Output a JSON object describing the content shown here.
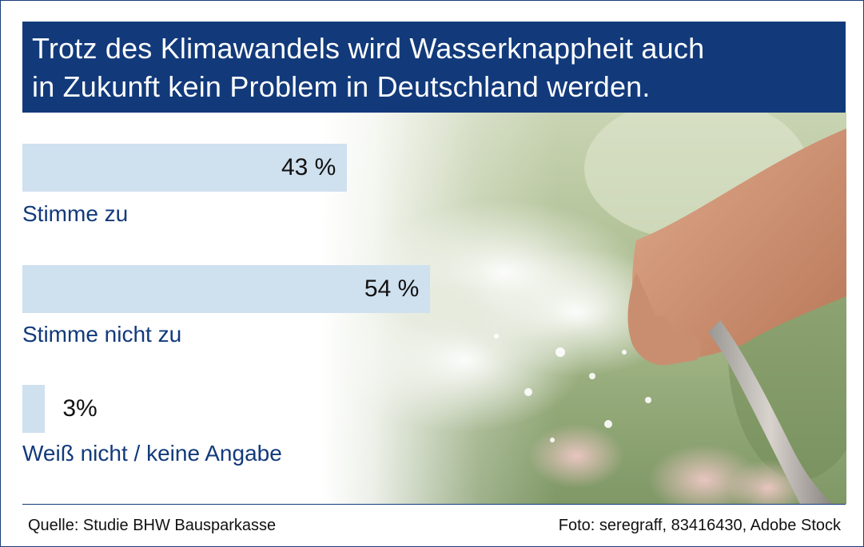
{
  "chart_data": {
    "type": "bar",
    "orientation": "horizontal",
    "title": "Trotz des Klimawandels wird Wasserknappheit auch in Zukunft kein Problem in Deutschland werden.",
    "title_lines": [
      "Trotz des Klimawandels wird Wasserknappheit auch",
      "in Zukunft kein Problem in Deutschland werden."
    ],
    "categories": [
      "Stimme zu",
      "Stimme nicht zu",
      "Weiß nicht / keine Angabe"
    ],
    "values": [
      43,
      54,
      3
    ],
    "value_labels": [
      "43 %",
      "54 %",
      "3%"
    ],
    "unit": "%",
    "xlim": [
      0,
      100
    ],
    "grid": false,
    "legend": "none",
    "colors": {
      "bar": "#cfe0ef",
      "title_background": "#123a7b",
      "title_text": "#ffffff",
      "category_text": "#123a7b"
    }
  },
  "footer": {
    "source": "Quelle: Studie BHW Bausparkasse",
    "credit": "Foto: seregraff, 83416430, Adobe Stock"
  },
  "background_image": {
    "icon": "garden-hose-watering-photo"
  }
}
